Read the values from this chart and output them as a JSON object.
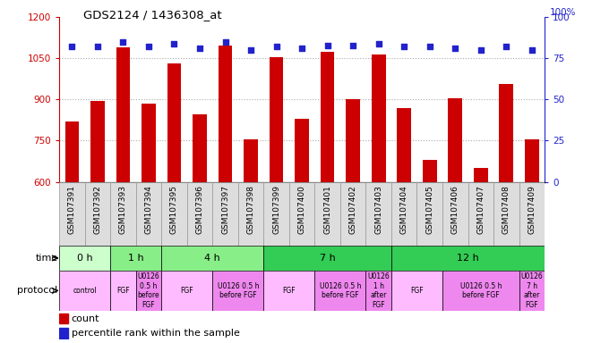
{
  "title": "GDS2124 / 1436308_at",
  "samples": [
    "GSM107391",
    "GSM107392",
    "GSM107393",
    "GSM107394",
    "GSM107395",
    "GSM107396",
    "GSM107397",
    "GSM107398",
    "GSM107399",
    "GSM107400",
    "GSM107401",
    "GSM107402",
    "GSM107403",
    "GSM107404",
    "GSM107405",
    "GSM107406",
    "GSM107407",
    "GSM107408",
    "GSM107409"
  ],
  "bar_values": [
    820,
    895,
    1090,
    885,
    1030,
    845,
    1095,
    755,
    1055,
    830,
    1075,
    900,
    1065,
    870,
    680,
    905,
    650,
    955,
    755
  ],
  "dot_values": [
    82,
    82,
    85,
    82,
    84,
    81,
    85,
    80,
    82,
    81,
    83,
    83,
    84,
    82,
    82,
    81,
    80,
    82,
    80
  ],
  "ylim_left": [
    600,
    1200
  ],
  "ylim_right": [
    0,
    100
  ],
  "yticks_left": [
    600,
    750,
    900,
    1050,
    1200
  ],
  "yticks_right": [
    0,
    25,
    50,
    75,
    100
  ],
  "bar_color": "#cc0000",
  "dot_color": "#2222cc",
  "time_groups": [
    {
      "label": "0 h",
      "start": 0,
      "end": 2,
      "color": "#ccffcc"
    },
    {
      "label": "1 h",
      "start": 2,
      "end": 4,
      "color": "#88ee88"
    },
    {
      "label": "4 h",
      "start": 4,
      "end": 8,
      "color": "#88ee88"
    },
    {
      "label": "7 h",
      "start": 8,
      "end": 13,
      "color": "#33cc55"
    },
    {
      "label": "12 h",
      "start": 13,
      "end": 19,
      "color": "#33cc55"
    }
  ],
  "protocol_groups": [
    {
      "label": "control",
      "start": 0,
      "end": 2,
      "color": "#ffbbff"
    },
    {
      "label": "FGF",
      "start": 2,
      "end": 3,
      "color": "#ffbbff"
    },
    {
      "label": "U0126\n0.5 h\nbefore\nFGF",
      "start": 3,
      "end": 4,
      "color": "#ee88ee"
    },
    {
      "label": "FGF",
      "start": 4,
      "end": 6,
      "color": "#ffbbff"
    },
    {
      "label": "U0126 0.5 h\nbefore FGF",
      "start": 6,
      "end": 8,
      "color": "#ee88ee"
    },
    {
      "label": "FGF",
      "start": 8,
      "end": 10,
      "color": "#ffbbff"
    },
    {
      "label": "U0126 0.5 h\nbefore FGF",
      "start": 10,
      "end": 12,
      "color": "#ee88ee"
    },
    {
      "label": "U0126\n1 h\nafter\nFGF",
      "start": 12,
      "end": 13,
      "color": "#ee88ee"
    },
    {
      "label": "FGF",
      "start": 13,
      "end": 15,
      "color": "#ffbbff"
    },
    {
      "label": "U0126 0.5 h\nbefore FGF",
      "start": 15,
      "end": 18,
      "color": "#ee88ee"
    },
    {
      "label": "U0126\n7 h\nafter\nFGF",
      "start": 18,
      "end": 19,
      "color": "#ee88ee"
    }
  ],
  "bg_color": "#ffffff",
  "grid_color": "#888888",
  "left_color": "#cc0000",
  "right_color": "#2222cc"
}
